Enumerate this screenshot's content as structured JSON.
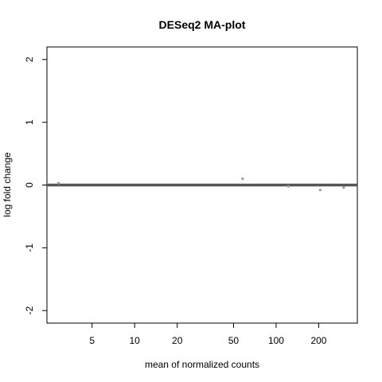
{
  "chart_data": {
    "type": "scatter",
    "title": "DESeq2 MA-plot",
    "xlabel": "mean of normalized counts",
    "ylabel": "log fold change",
    "x_scale": "log",
    "xlim": [
      2.4,
      375
    ],
    "ylim": [
      -2.2,
      2.2
    ],
    "x_ticks": [
      5,
      10,
      20,
      50,
      100,
      200
    ],
    "x_tick_labels": [
      "5",
      "10",
      "20",
      "50",
      "100",
      "200"
    ],
    "y_ticks": [
      -2,
      -1,
      0,
      1,
      2
    ],
    "y_tick_labels": [
      "-2",
      "-1",
      "0",
      "1",
      "2"
    ],
    "reference_line": {
      "y": 0,
      "color": "#555555"
    },
    "point_color": "#999999",
    "grid": false,
    "legend": "none",
    "series": [
      {
        "points": [
          {
            "x": 2.9,
            "y": 0.03
          },
          {
            "x": 58,
            "y": 0.1
          },
          {
            "x": 122,
            "y": -0.02
          },
          {
            "x": 205,
            "y": -0.08
          },
          {
            "x": 300,
            "y": -0.04
          }
        ]
      }
    ]
  }
}
